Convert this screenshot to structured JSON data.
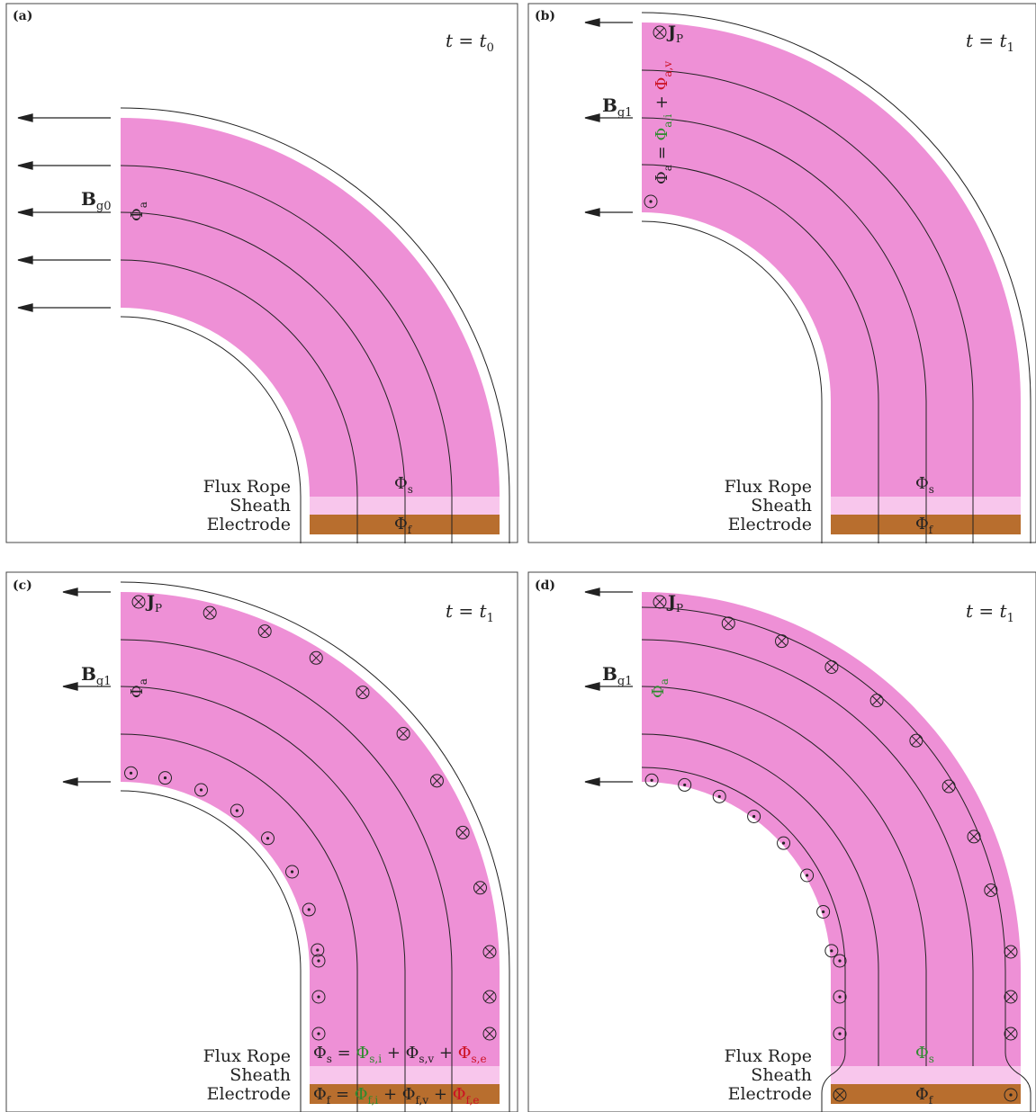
{
  "colors": {
    "rope": "#ee90d6",
    "sheath": "#f8c6ec",
    "electrode": "#b86e2e",
    "line": "#222222",
    "green": "#2e8b2e",
    "red": "#cc1122"
  },
  "labels": {
    "flux_rope": "Flux Rope",
    "sheath": "Sheath",
    "electrode": "Electrode",
    "phi": "Φ",
    "plus": "+",
    "equals": "=",
    "B": "B",
    "J": "J",
    "t": "t",
    "sub_a": "a",
    "sub_s": "s",
    "sub_f": "f",
    "sub_P": "P",
    "sub_g0": "g0",
    "sub_g1": "g1",
    "sub_ai": "a,i",
    "sub_av": "a,v",
    "sub_si": "s,i",
    "sub_sv": "s,v",
    "sub_se": "s,e",
    "sub_fi": "f,i",
    "sub_fv": "f,v",
    "sub_fe": "f,e"
  },
  "panels": [
    {
      "id": "(a)",
      "time_sub": "0"
    },
    {
      "id": "(b)",
      "time_sub": "1"
    },
    {
      "id": "(c)",
      "time_sub": "1"
    },
    {
      "id": "(d)",
      "time_sub": "1"
    }
  ]
}
